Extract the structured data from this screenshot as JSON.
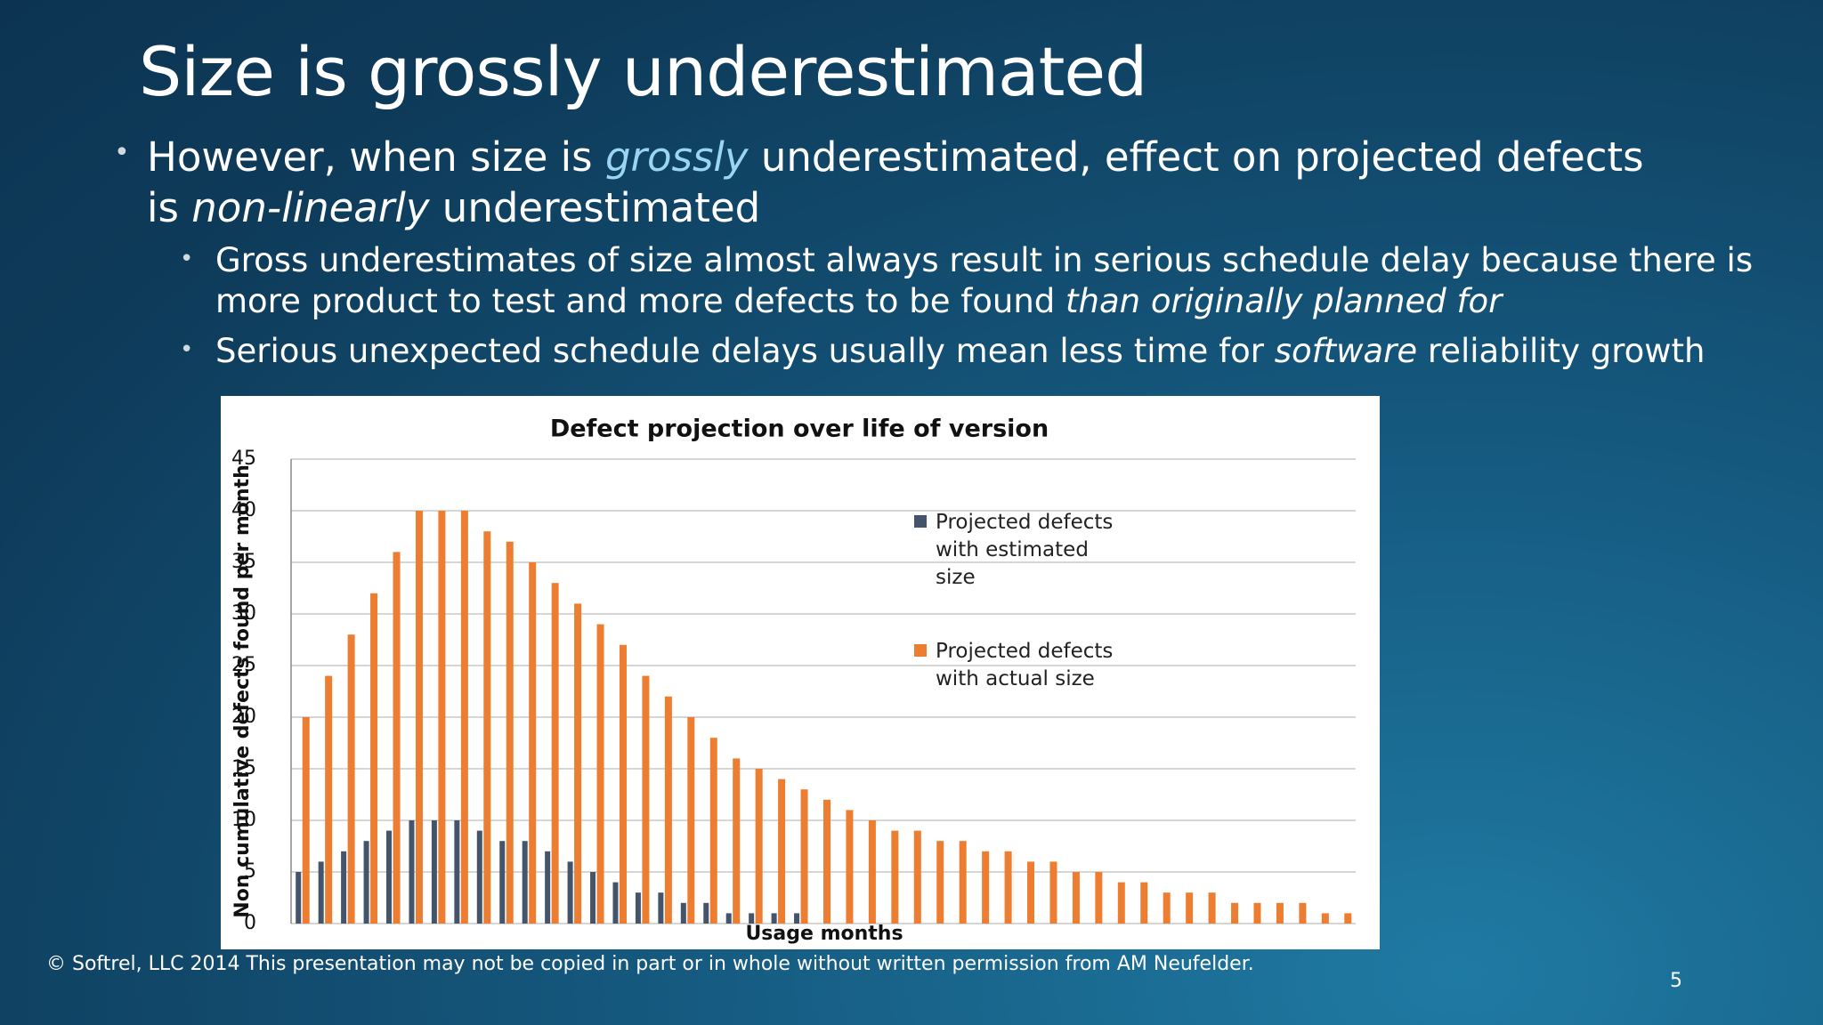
{
  "slide": {
    "title": "Size is grossly underestimated",
    "bullets": [
      [
        "However, when size is ",
        "grossly",
        " underestimated, effect on projected defects is ",
        "non-linearly",
        " underestimated"
      ],
      [
        "Gross underestimates of size almost always result in serious schedule delay because there is more product to test and more defects to be found ",
        "than originally planned for"
      ],
      [
        "Serious unexpected schedule delays usually mean less time for ",
        "software",
        " reliability growth"
      ]
    ],
    "footer": "© Softrel, LLC 2014 This presentation may not be copied in part or in whole without written permission from AM Neufelder.",
    "page_number": "5"
  },
  "chart_data": {
    "type": "bar",
    "title": "Defect projection over life of version",
    "x_label": "Usage months",
    "y_label": "Non cumulative defects found per month",
    "series": [
      {
        "name": "Projected defects with estimated size",
        "color": "#44546a",
        "values": [
          5,
          6,
          7,
          8,
          9,
          10,
          10,
          10,
          9,
          8,
          8,
          7,
          6,
          5,
          4,
          3,
          3,
          2,
          2,
          1,
          1,
          1,
          1,
          0,
          0,
          0,
          0,
          0,
          0,
          0,
          0,
          0,
          0,
          0,
          0,
          0,
          0,
          0,
          0,
          0,
          0,
          0,
          0,
          0,
          0,
          0,
          0
        ]
      },
      {
        "name": "Projected defects with actual size",
        "color": "#ed7d31",
        "values": [
          20,
          24,
          28,
          32,
          36,
          40,
          40,
          40,
          38,
          37,
          35,
          33,
          31,
          29,
          27,
          24,
          22,
          20,
          18,
          16,
          15,
          14,
          13,
          12,
          11,
          10,
          9,
          9,
          8,
          8,
          7,
          7,
          6,
          6,
          5,
          5,
          4,
          4,
          3,
          3,
          3,
          2,
          2,
          2,
          2,
          1,
          1
        ]
      }
    ],
    "ylim": [
      0,
      45
    ],
    "yticks": [
      0,
      5,
      10,
      15,
      20,
      25,
      30,
      35,
      40,
      45
    ],
    "grid": true
  }
}
